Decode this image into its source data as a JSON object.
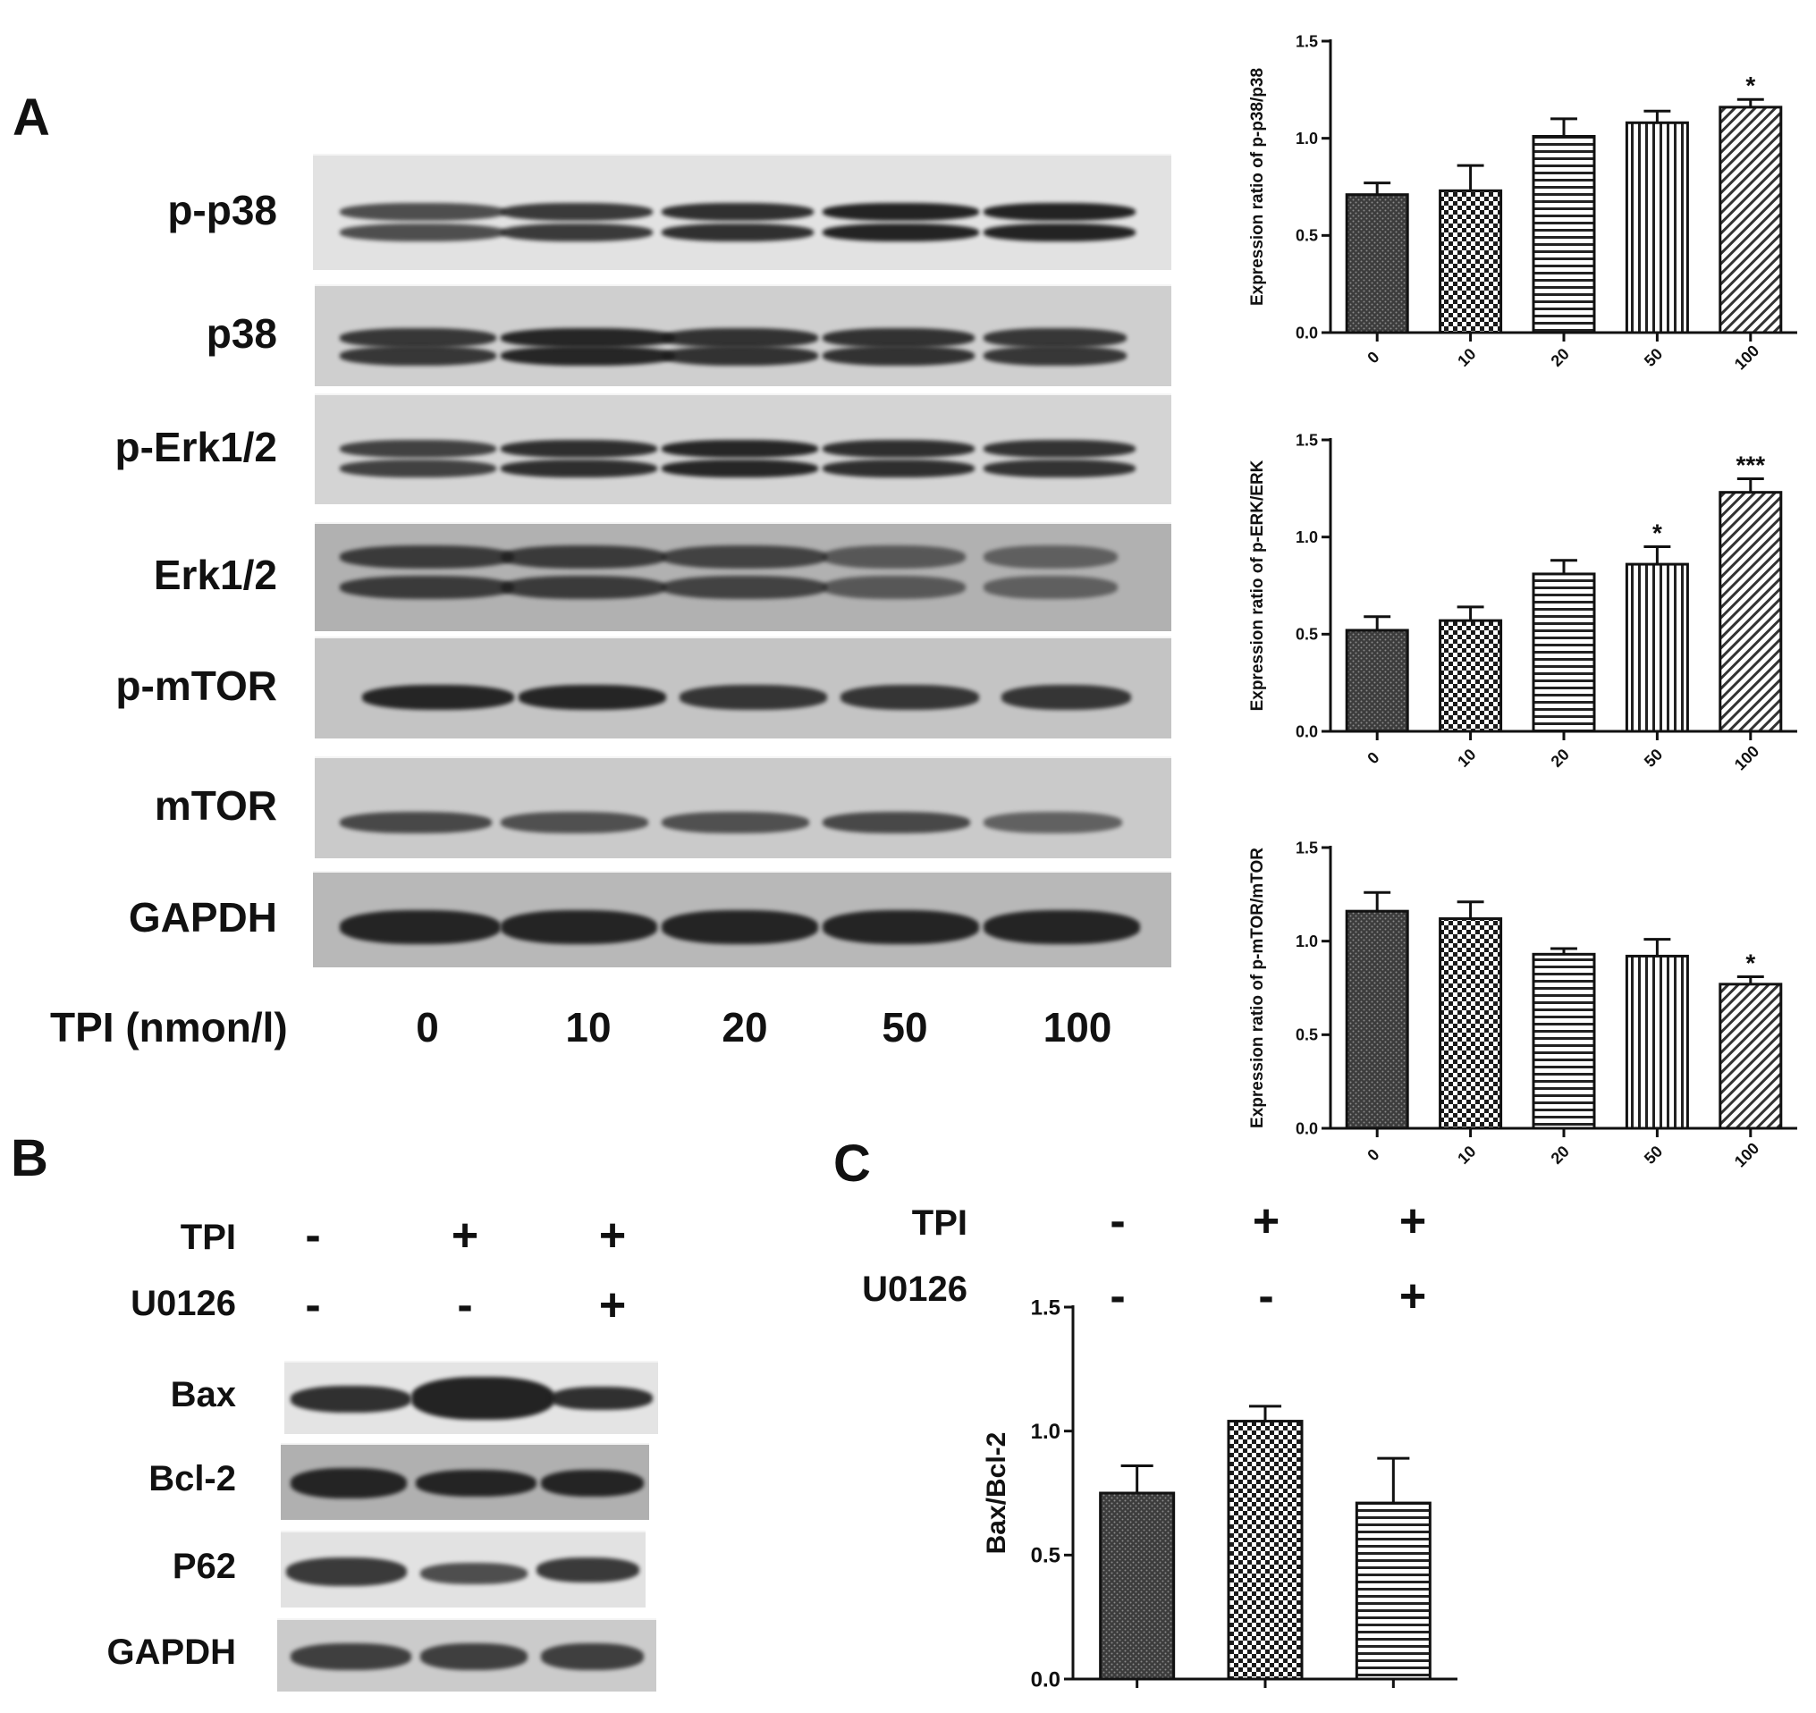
{
  "panels": {
    "a": "A",
    "b": "B",
    "c": "C"
  },
  "panel_a": {
    "blot_labels": [
      "p-p38",
      "p38",
      "p-Erk1/2",
      "Erk1/2",
      "p-mTOR",
      "mTOR",
      "GAPDH"
    ],
    "dose_label": "TPI (nmon/l)",
    "doses": [
      "0",
      "10",
      "20",
      "50",
      "100"
    ]
  },
  "panel_b": {
    "conditions": [
      {
        "label": "TPI",
        "signs": [
          "-",
          "+",
          "+"
        ]
      },
      {
        "label": "U0126",
        "signs": [
          "-",
          "-",
          "+"
        ]
      }
    ],
    "blot_labels": [
      "Bax",
      "Bcl-2",
      "P62",
      "GAPDH"
    ]
  },
  "panel_c": {
    "conditions": [
      {
        "label": "TPI",
        "signs": [
          "-",
          "+",
          "+"
        ]
      },
      {
        "label": "U0126",
        "signs": [
          "-",
          "-",
          "+"
        ]
      }
    ]
  },
  "chart_data": [
    {
      "type": "bar",
      "categories": [
        "0",
        "10",
        "20",
        "50",
        "100"
      ],
      "values": [
        0.71,
        0.73,
        1.01,
        1.08,
        1.16
      ],
      "errors": [
        0.06,
        0.13,
        0.09,
        0.06,
        0.04
      ],
      "annotations": [
        "",
        "",
        "",
        "",
        "*"
      ],
      "ylabel": "Expression ratio of p-p38/p38",
      "ylim": [
        0,
        1.5
      ],
      "yticks": [
        "0.0",
        "0.5",
        "1.0",
        "1.5"
      ],
      "patterns": [
        "dense",
        "check",
        "hstripe",
        "vstripe",
        "diag"
      ]
    },
    {
      "type": "bar",
      "categories": [
        "0",
        "10",
        "20",
        "50",
        "100"
      ],
      "values": [
        0.52,
        0.57,
        0.81,
        0.86,
        1.23
      ],
      "errors": [
        0.07,
        0.07,
        0.07,
        0.09,
        0.07
      ],
      "annotations": [
        "",
        "",
        "",
        "*",
        "***"
      ],
      "ylabel": "Expression ratio of p-ERK/ERK",
      "ylim": [
        0,
        1.5
      ],
      "yticks": [
        "0.0",
        "0.5",
        "1.0",
        "1.5"
      ],
      "patterns": [
        "dense",
        "check",
        "hstripe",
        "vstripe",
        "diag"
      ]
    },
    {
      "type": "bar",
      "categories": [
        "0",
        "10",
        "20",
        "50",
        "100"
      ],
      "values": [
        1.16,
        1.12,
        0.93,
        0.92,
        0.77
      ],
      "errors": [
        0.1,
        0.09,
        0.03,
        0.09,
        0.04
      ],
      "annotations": [
        "",
        "",
        "",
        "",
        "*"
      ],
      "ylabel": "Expression ratio of p-mTOR/mTOR",
      "ylim": [
        0,
        1.5
      ],
      "yticks": [
        "0.0",
        "0.5",
        "1.0",
        "1.5"
      ],
      "patterns": [
        "dense",
        "check",
        "hstripe",
        "vstripe",
        "diag"
      ]
    },
    {
      "type": "bar",
      "categories": [
        "",
        "",
        ""
      ],
      "values": [
        0.75,
        1.04,
        0.71
      ],
      "errors": [
        0.11,
        0.06,
        0.18
      ],
      "annotations": [
        "",
        "",
        ""
      ],
      "ylabel": "Bax/Bcl-2",
      "ylim": [
        0,
        1.5
      ],
      "yticks": [
        "0.0",
        "0.5",
        "1.0",
        "1.5"
      ],
      "patterns": [
        "dense",
        "check",
        "hstripe"
      ]
    }
  ]
}
